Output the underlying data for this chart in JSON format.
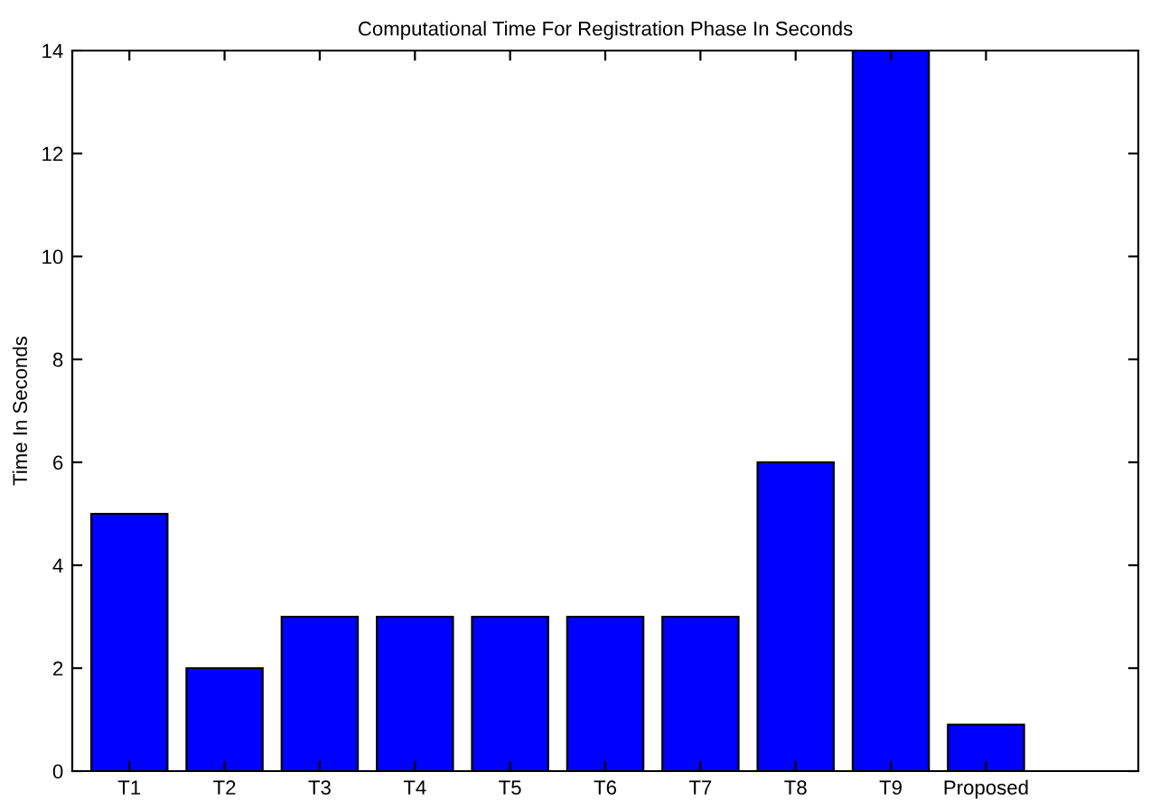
{
  "chart_data": {
    "type": "bar",
    "title": "Computational Time For Registration Phase In Seconds",
    "ylabel": "Time In Seconds",
    "categories": [
      "T1",
      "T2",
      "T3",
      "T4",
      "T5",
      "T6",
      "T7",
      "T8",
      "T9",
      "Proposed"
    ],
    "values": [
      5,
      2,
      3,
      3,
      3,
      3,
      3,
      6,
      14,
      0.9
    ],
    "color": "#0000ff",
    "ylim": [
      0,
      14
    ],
    "yticks": [
      0,
      2,
      4,
      6,
      8,
      10,
      12,
      14
    ],
    "grid": false,
    "legend": false
  }
}
